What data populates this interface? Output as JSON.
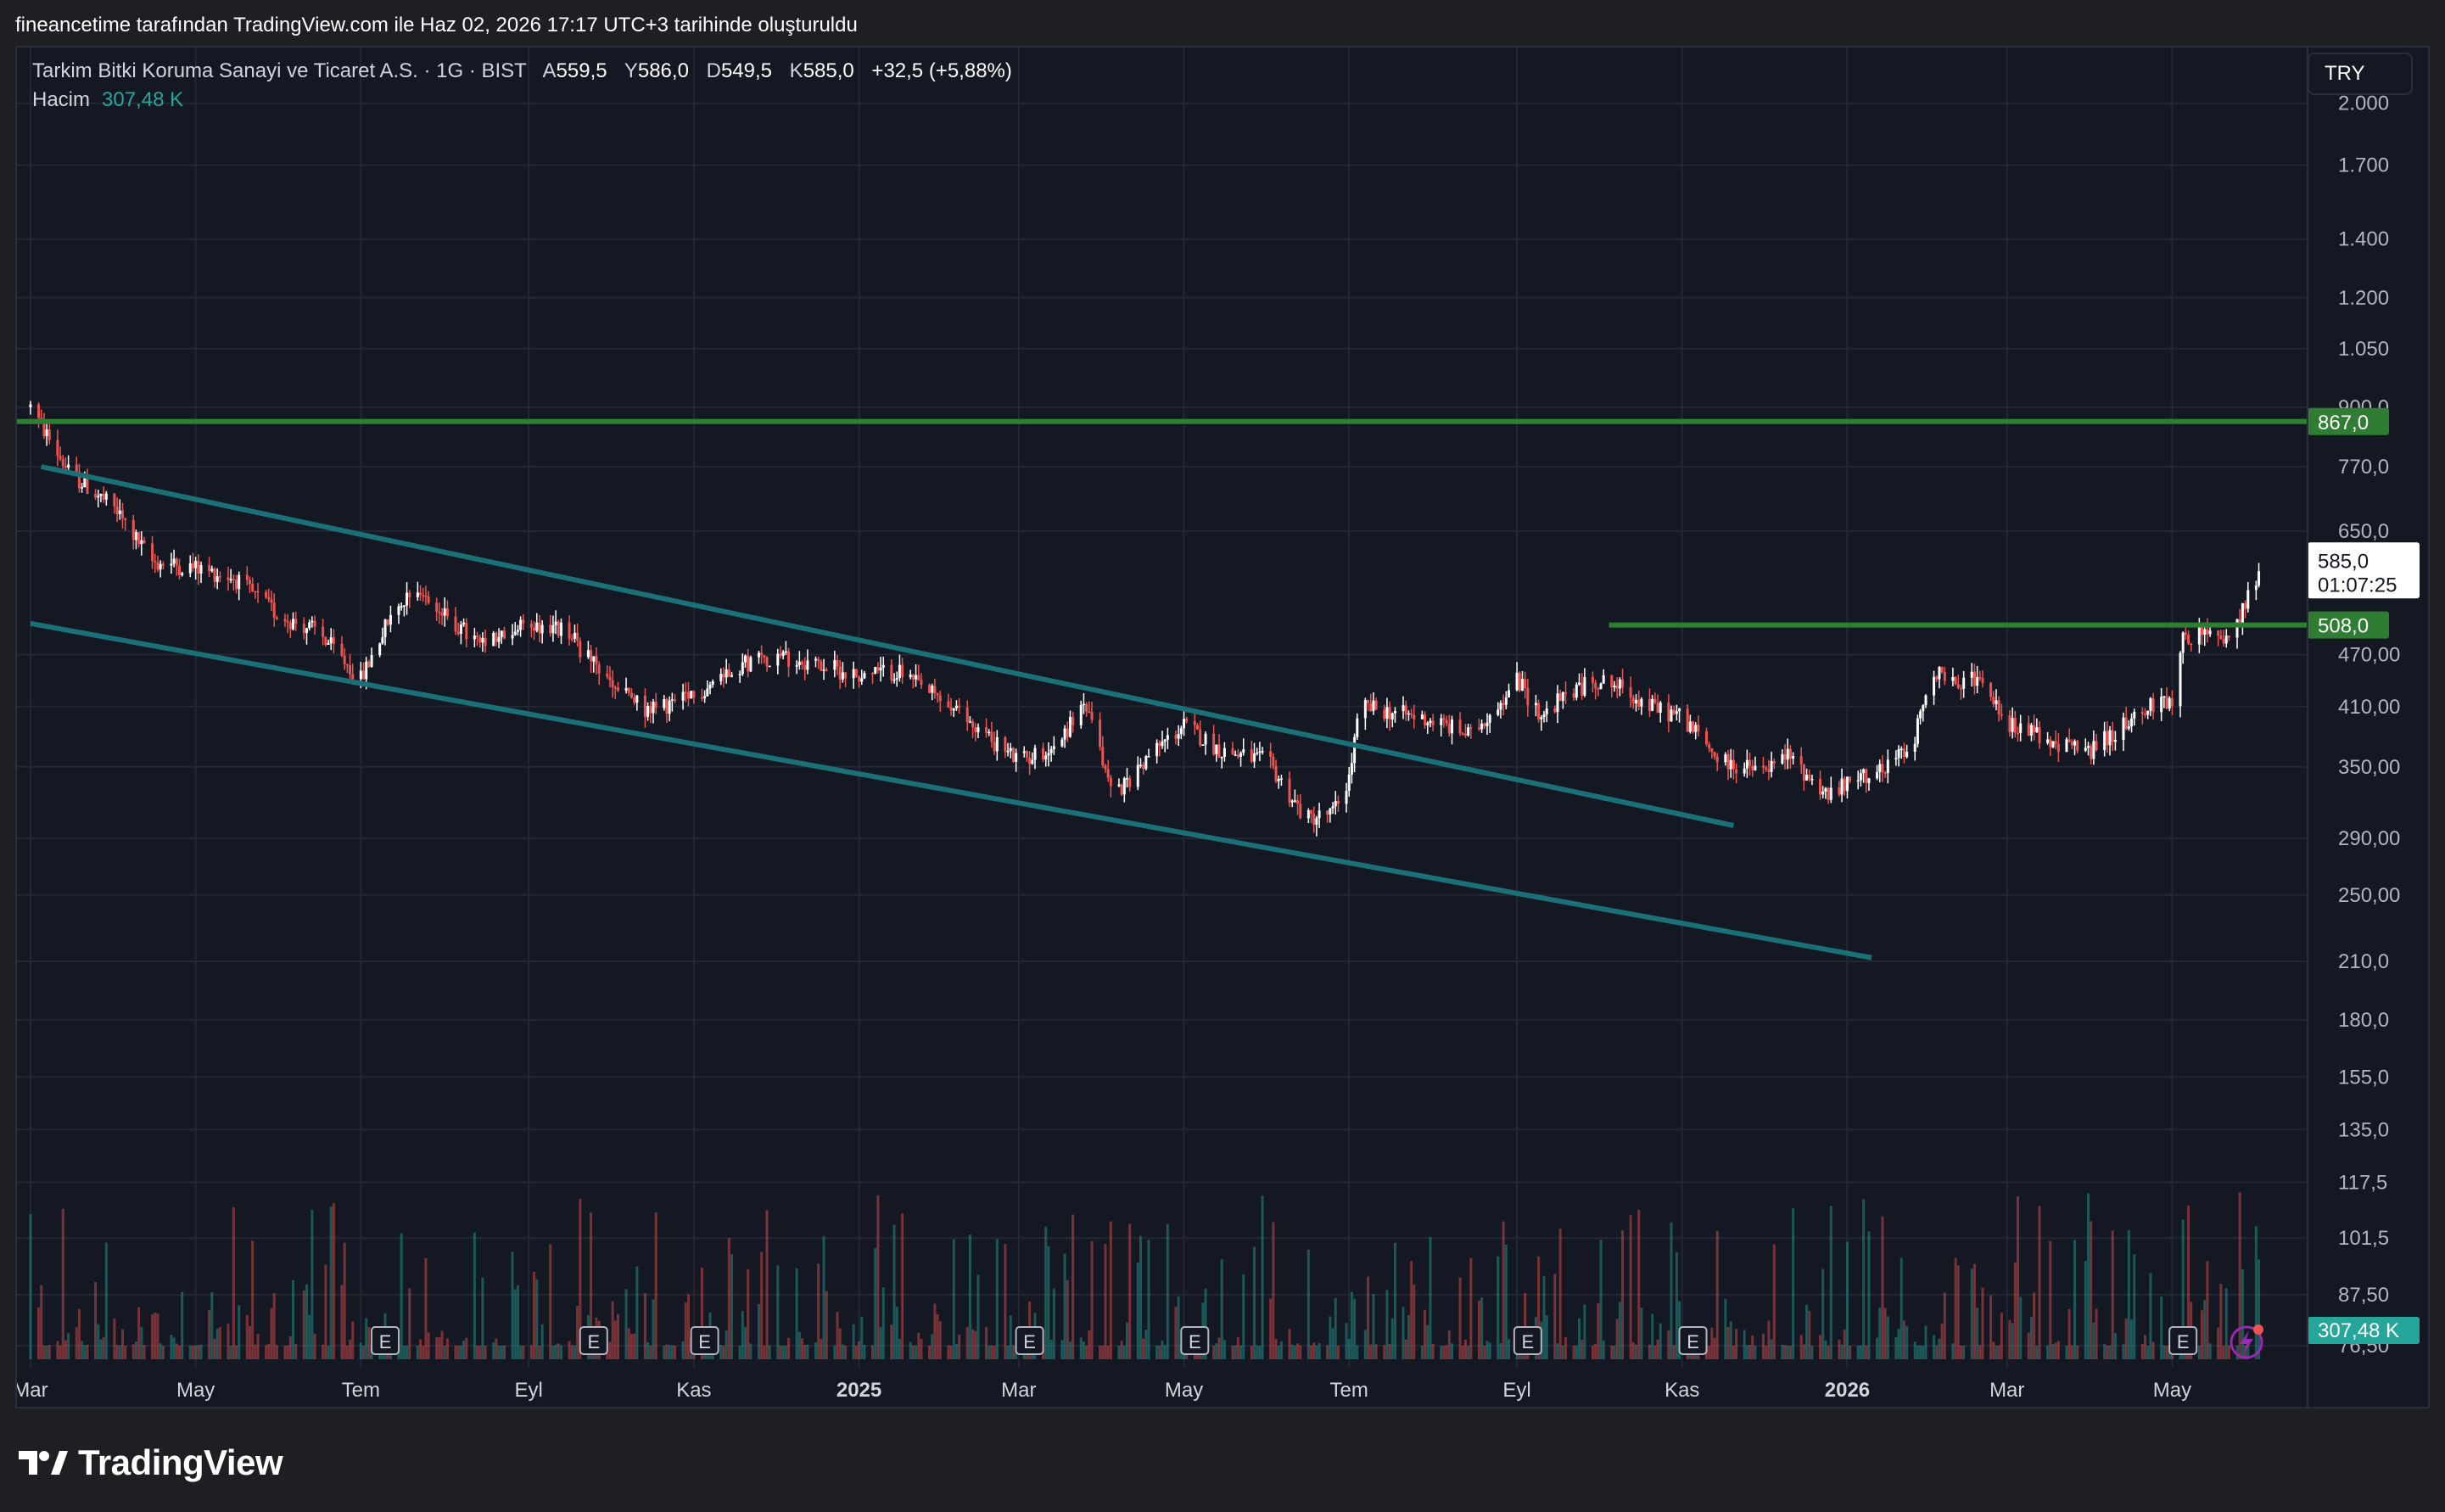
{
  "caption": "fineancetime tarafından TradingView.com ile Haz 02, 2026 17:17 UTC+3 tarihinde oluşturuldu",
  "legend": {
    "symbol_line": "Tarkim Bitki Koruma Sanayi ve Ticaret A.S. · 1G · BIST",
    "open_label": "A",
    "open": "559,5",
    "high_label": "Y",
    "high": "586,0",
    "low_label": "D",
    "low": "549,5",
    "close_label": "K",
    "close": "585,0",
    "change": "+32,5 (+5,88%)",
    "volume_label": "Hacim",
    "volume_value": "307,48 K"
  },
  "currency_button": "TRY",
  "brand": "TradingView",
  "colors": {
    "background": "#141823",
    "up": "#26a69a",
    "down": "#ef5350",
    "candle_up": "#ffffff",
    "candle_down": "#ef5350",
    "trendline": "#1b6f77",
    "horizontal_line": "#2e7d32",
    "grid": "#222733"
  },
  "chart_data": {
    "type": "candlestick",
    "y_scale": "log",
    "y_ticks": [
      "2.000",
      "1.700",
      "1.400",
      "1.200",
      "1.050",
      "900,0",
      "770,0",
      "650,0",
      "470,00",
      "410,00",
      "350,00",
      "290,00",
      "250,00",
      "210,0",
      "180,0",
      "155,0",
      "135,0",
      "117,5",
      "101,5",
      "87,50",
      "76,50"
    ],
    "y_tick_values": [
      2000,
      1700,
      1400,
      1200,
      1050,
      900,
      770,
      650,
      470,
      410,
      350,
      290,
      250,
      210,
      180,
      155,
      135,
      117.5,
      101.5,
      87.5,
      76.5
    ],
    "x_ticks": [
      {
        "label": "Mar",
        "date": "2024-03-01"
      },
      {
        "label": "May",
        "date": "2024-05-01"
      },
      {
        "label": "Tem",
        "date": "2024-07-01"
      },
      {
        "label": "Eyl",
        "date": "2024-09-01"
      },
      {
        "label": "Kas",
        "date": "2024-11-01"
      },
      {
        "label": "2025",
        "date": "2025-01-01",
        "bold": true
      },
      {
        "label": "Mar",
        "date": "2025-03-01"
      },
      {
        "label": "May",
        "date": "2025-05-01"
      },
      {
        "label": "Tem",
        "date": "2025-07-01"
      },
      {
        "label": "Eyl",
        "date": "2025-09-01"
      },
      {
        "label": "Kas",
        "date": "2025-11-01"
      },
      {
        "label": "2026",
        "date": "2026-01-01",
        "bold": true
      },
      {
        "label": "Mar",
        "date": "2026-03-01"
      },
      {
        "label": "May",
        "date": "2026-05-01"
      }
    ],
    "price_path": [
      [
        "2024-03-01",
        900
      ],
      [
        "2024-03-15",
        760
      ],
      [
        "2024-04-01",
        690
      ],
      [
        "2024-04-15",
        600
      ],
      [
        "2024-05-01",
        590
      ],
      [
        "2024-05-15",
        575
      ],
      [
        "2024-06-01",
        520
      ],
      [
        "2024-06-15",
        500
      ],
      [
        "2024-07-01",
        440
      ],
      [
        "2024-07-10",
        505
      ],
      [
        "2024-07-20",
        565
      ],
      [
        "2024-08-01",
        520
      ],
      [
        "2024-08-15",
        480
      ],
      [
        "2024-09-01",
        510
      ],
      [
        "2024-09-15",
        500
      ],
      [
        "2024-10-01",
        435
      ],
      [
        "2024-10-15",
        405
      ],
      [
        "2024-11-01",
        420
      ],
      [
        "2024-11-15",
        455
      ],
      [
        "2024-12-01",
        470
      ],
      [
        "2024-12-15",
        460
      ],
      [
        "2025-01-01",
        445
      ],
      [
        "2025-01-15",
        450
      ],
      [
        "2025-02-01",
        415
      ],
      [
        "2025-02-15",
        385
      ],
      [
        "2025-03-01",
        355
      ],
      [
        "2025-03-15",
        370
      ],
      [
        "2025-03-25",
        415
      ],
      [
        "2025-04-05",
        325
      ],
      [
        "2025-04-20",
        365
      ],
      [
        "2025-05-01",
        390
      ],
      [
        "2025-05-15",
        365
      ],
      [
        "2025-06-01",
        355
      ],
      [
        "2025-06-15",
        305
      ],
      [
        "2025-06-25",
        310
      ],
      [
        "2025-07-01",
        340
      ],
      [
        "2025-07-05",
        410
      ],
      [
        "2025-07-15",
        405
      ],
      [
        "2025-08-01",
        395
      ],
      [
        "2025-08-15",
        380
      ],
      [
        "2025-09-01",
        440
      ],
      [
        "2025-09-10",
        400
      ],
      [
        "2025-09-20",
        425
      ],
      [
        "2025-10-01",
        440
      ],
      [
        "2025-10-10",
        430
      ],
      [
        "2025-10-20",
        410
      ],
      [
        "2025-11-01",
        400
      ],
      [
        "2025-11-15",
        355
      ],
      [
        "2025-12-01",
        345
      ],
      [
        "2025-12-10",
        360
      ],
      [
        "2025-12-25",
        325
      ],
      [
        "2026-01-10",
        345
      ],
      [
        "2026-01-25",
        370
      ],
      [
        "2026-02-01",
        455
      ],
      [
        "2026-02-10",
        430
      ],
      [
        "2026-02-20",
        445
      ],
      [
        "2026-03-01",
        395
      ],
      [
        "2026-03-15",
        375
      ],
      [
        "2026-04-01",
        365
      ],
      [
        "2026-04-10",
        385
      ],
      [
        "2026-04-25",
        415
      ],
      [
        "2026-05-01",
        415
      ],
      [
        "2026-05-05",
        490
      ],
      [
        "2026-05-15",
        500
      ],
      [
        "2026-05-22",
        480
      ],
      [
        "2026-06-02",
        585
      ]
    ],
    "lines": [
      {
        "type": "horizontal",
        "price": 867,
        "label": "867,0"
      },
      {
        "type": "horizontal",
        "price": 508,
        "label": "508,0",
        "from": "2025-10-05"
      },
      {
        "type": "trend",
        "from": [
          "2024-03-05",
          770
        ],
        "to": [
          "2025-11-20",
          300
        ]
      },
      {
        "type": "trend",
        "from": [
          "2024-03-01",
          510
        ],
        "to": [
          "2026-01-10",
          212
        ]
      }
    ],
    "last_price": {
      "label": "585,0",
      "countdown": "01:07:25"
    },
    "last_volume_label": "307,48 K",
    "earnings_markers": [
      "2024-07-10",
      "2024-09-25",
      "2024-11-05",
      "2025-03-05",
      "2025-05-05",
      "2025-09-05",
      "2025-11-05",
      "2026-05-05"
    ],
    "earnings_label": "E"
  }
}
